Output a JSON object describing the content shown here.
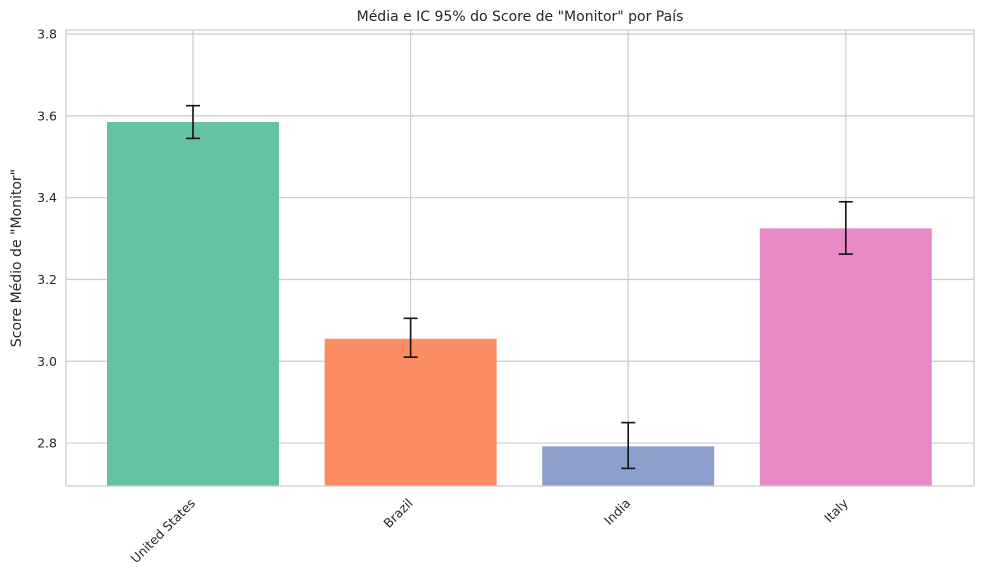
{
  "chart_data": {
    "type": "bar",
    "title": "Média e IC 95% do Score de \"Monitor\" por País",
    "xlabel": "",
    "ylabel": "Score Médio de \"Monitor\"",
    "categories": [
      "United States",
      "Brazil",
      "India",
      "Italy"
    ],
    "values": [
      3.585,
      3.055,
      2.792,
      3.325
    ],
    "ci_lower": [
      3.545,
      3.01,
      2.738,
      3.262
    ],
    "ci_upper": [
      3.625,
      3.105,
      2.85,
      3.39
    ],
    "ylim": [
      2.695,
      3.81
    ],
    "yticks": [
      2.8,
      3.0,
      3.2,
      3.4,
      3.6,
      3.8
    ],
    "ytick_labels": [
      "2.8",
      "3.0",
      "3.2",
      "3.4",
      "3.6",
      "3.8"
    ],
    "colors": [
      "#66c2a5",
      "#fc8d62",
      "#8da0cb",
      "#e78ac3"
    ],
    "grid": true,
    "legend": "none"
  }
}
